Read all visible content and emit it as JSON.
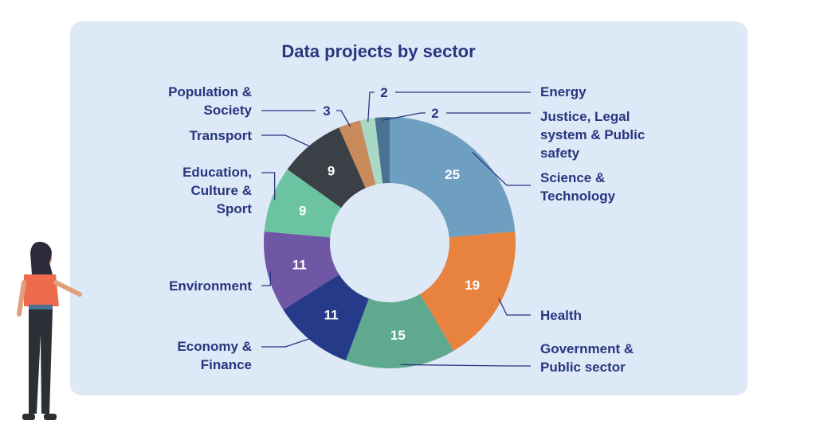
{
  "chart_data": {
    "type": "donut",
    "title": "Data projects by sector",
    "categories": [
      "Science & Technology",
      "Health",
      "Government & Public sector",
      "Economy & Finance",
      "Environment",
      "Education, Culture & Sport",
      "Transport",
      "Population & Society",
      "Energy",
      "Justice, Legal system & Public safety"
    ],
    "values": [
      25,
      19,
      15,
      11,
      11,
      9,
      9,
      3,
      2,
      2
    ],
    "colors": [
      "#6f9fc0",
      "#e8823f",
      "#5fa98f",
      "#263a8a",
      "#7057a6",
      "#6cc3a2",
      "#3b3f46",
      "#c98a5c",
      "#a9d8c4",
      "#4a7391"
    ]
  }
}
